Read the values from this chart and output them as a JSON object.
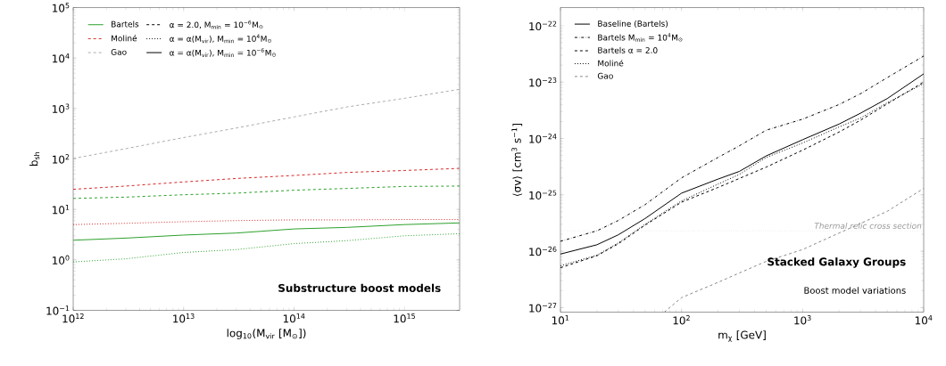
{
  "chart_data": [
    {
      "type": "line",
      "xlabel": "log$_{10}$(M$_{vir}$ [M$_{⊙}$])",
      "ylabel": "b$_{sh}$",
      "log": "xy",
      "legend": "top left",
      "grid": false,
      "xlim": [
        1000000000000.0,
        3160000000000000.0
      ],
      "ylim": [
        0.1,
        100000
      ],
      "xticks": [
        {
          "value": 1000000000000.0,
          "label": "10$^{12}$"
        },
        {
          "value": 10000000000000.0,
          "label": "10$^{13}$"
        },
        {
          "value": 100000000000000.0,
          "label": "10$^{14}$"
        },
        {
          "value": 1000000000000000.0,
          "label": "10$^{15}$"
        }
      ],
      "yticks": [
        {
          "value": 0.1,
          "label": "10$^{−1}$"
        },
        {
          "value": 1,
          "label": "10$^{0}$"
        },
        {
          "value": 10,
          "label": "10$^{1}$"
        },
        {
          "value": 100,
          "label": "10$^{2}$"
        },
        {
          "value": 1000,
          "label": "10$^{3}$"
        },
        {
          "value": 10000,
          "label": "10$^{4}$"
        },
        {
          "value": 100000,
          "label": "10$^{5}$"
        }
      ],
      "x": [
        1000000000000.0,
        3000000000000.0,
        10000000000000.0,
        30000000000000.0,
        100000000000000.0,
        300000000000000.0,
        1000000000000000.0,
        3160000000000000.0
      ],
      "series": [
        {
          "name": "Bartels",
          "color": "#2ca02c",
          "line_style": "solid",
          "values": [
            2.45,
            2.7,
            3.1,
            3.4,
            4.1,
            4.4,
            5.0,
            5.4
          ]
        },
        {
          "color": "#2ca02c",
          "line_style": "dashed",
          "values": [
            16.5,
            17.5,
            19.5,
            21,
            24,
            26,
            28.5,
            29
          ]
        },
        {
          "color": "#2ca02c",
          "line_style": "dotted",
          "values": [
            0.91,
            1.05,
            1.4,
            1.6,
            2.1,
            2.4,
            3.0,
            3.3
          ]
        },
        {
          "name": "Moliné",
          "color": "#d62728",
          "line_style": "dashed",
          "values": [
            25,
            29,
            35,
            41,
            47,
            54,
            59,
            65
          ]
        },
        {
          "color": "#d62728",
          "line_style": "dotted",
          "values": [
            5.0,
            5.3,
            5.7,
            6.0,
            6.2,
            6.2,
            6.3,
            6.3
          ]
        },
        {
          "name": "Gao",
          "color": "#aaaaaa",
          "line_style": "dashed",
          "values": [
            102,
            160,
            265,
            410,
            680,
            1070,
            1590,
            2400
          ]
        },
        {
          "name": "α = 2.0, M$_{min}$ = 10$^{−6}$M$_{⊙}$",
          "color": "#000000",
          "line_style": "dashed",
          "values": [
            null,
            null,
            null,
            null,
            null,
            null,
            null,
            null
          ]
        },
        {
          "name": "α = α(M$_{vir}$), M$_{min}$ = 10$^{4}$M$_{⊙}$",
          "color": "#000000",
          "line_style": "dotted",
          "values": [
            null,
            null,
            null,
            null,
            null,
            null,
            null,
            null
          ]
        },
        {
          "name": "α = α(M$_{vir}$), M$_{min}$ = 10$^{−6}$M$_{⊙}$",
          "color": "#000000",
          "line_style": "solid",
          "values": [
            null,
            null,
            null,
            null,
            null,
            null,
            null,
            null
          ]
        }
      ],
      "annotations": [
        "Substructure boost models"
      ]
    },
    {
      "type": "line",
      "xlabel": "m$_{χ}$ [GeV]",
      "ylabel": "⟨σv⟩ [cm$^{3}$ s$^{−1}$]",
      "log": "xy",
      "legend": "top left",
      "grid": false,
      "xlim": [
        10,
        10000
      ],
      "ylim": [
        8.3e-28,
        2.1e-22
      ],
      "xticks": [
        {
          "value": 10,
          "label": "10$^{1}$"
        },
        {
          "value": 100,
          "label": "10$^{2}$"
        },
        {
          "value": 1000,
          "label": "10$^{3}$"
        },
        {
          "value": 10000,
          "label": "10$^{4}$"
        }
      ],
      "yticks": [
        {
          "value": 1e-27,
          "label": "10$^{−27}$"
        },
        {
          "value": 1e-26,
          "label": "10$^{−26}$"
        },
        {
          "value": 1e-25,
          "label": "10$^{−25}$"
        },
        {
          "value": 1e-24,
          "label": "10$^{−24}$"
        },
        {
          "value": 1e-23,
          "label": "10$^{−23}$"
        },
        {
          "value": 1e-22,
          "label": "10$^{−22}$"
        }
      ],
      "x": [
        10,
        20,
        30,
        50,
        100,
        200,
        300,
        500,
        1000,
        2000,
        3000,
        5000,
        10000
      ],
      "series": [
        {
          "name": "Baseline (Bartels)",
          "color": "#000000",
          "line_style": "solid",
          "values": [
            8.9e-27,
            1.3e-26,
            1.95e-26,
            3.8e-26,
            1.07e-25,
            1.9e-25,
            2.6e-25,
            4.9e-25,
            9.5e-25,
            1.8e-24,
            2.8e-24,
            5.1e-24,
            1.4e-23
          ]
        },
        {
          "name": "Bartels M$_{min}$ = 10$^{4}$M$_{⊙}$",
          "color": "#000000",
          "line_style": "dashdot",
          "values": [
            1.5e-26,
            2.3e-26,
            3.5e-26,
            6.7e-26,
            2e-25,
            4.6e-25,
            7.4e-25,
            1.4e-24,
            2.2e-24,
            4e-24,
            6.2e-24,
            1.2e-23,
            2.9e-23
          ]
        },
        {
          "name": "Bartels α = 2.0",
          "color": "#000000",
          "line_style": "dashed",
          "values": [
            5.1e-27,
            8.3e-27,
            1.35e-26,
            2.9e-26,
            7.4e-26,
            1.35e-25,
            1.95e-25,
            3.1e-25,
            6.2e-25,
            1.3e-24,
            2.1e-24,
            4.1e-24,
            1e-23
          ]
        },
        {
          "name": "Moliné",
          "color": "#000000",
          "line_style": "dotted",
          "values": [
            5.5e-27,
            8.5e-27,
            1.4e-26,
            3e-26,
            7.8e-26,
            1.55e-25,
            2.3e-25,
            4.6e-25,
            8.3e-25,
            1.6e-24,
            2.3e-24,
            4.3e-24,
            9.4e-24
          ]
        },
        {
          "name": "Gao",
          "color": "#888888",
          "line_style": "dashed",
          "x": [
            72,
            100,
            200,
            300,
            500,
            1000,
            2000,
            3000,
            5000,
            10000
          ],
          "values": [
            8.3e-28,
            1.5e-27,
            2.8e-27,
            4.1e-27,
            6.6e-27,
            1.07e-26,
            2.1e-26,
            3.1e-26,
            5.1e-26,
            1.3e-25
          ]
        }
      ],
      "ref_lines": [
        {
          "axis": "y",
          "value": 2.3e-26,
          "label": "Thermal relic cross section",
          "color": "#999999",
          "line_style": "dotted"
        }
      ],
      "annotations": [
        "Stacked Galaxy Groups",
        "Boost model variations"
      ]
    }
  ]
}
